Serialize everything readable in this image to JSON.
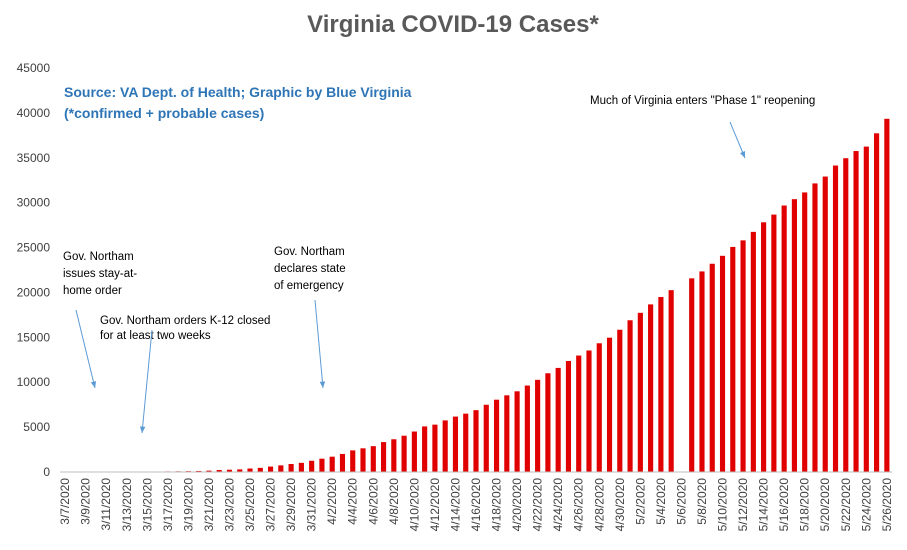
{
  "chart_data": {
    "type": "bar",
    "title": "Virginia COVID-19 Cases*",
    "source_note": "Source: VA Dept. of Health; Graphic by Blue Virginia",
    "source_note2": "(*confirmed + probable cases)",
    "xlabel": "",
    "ylabel": "",
    "ylim": [
      0,
      45000
    ],
    "yticks": [
      0,
      5000,
      10000,
      15000,
      20000,
      25000,
      30000,
      35000,
      40000,
      45000
    ],
    "xtick_labels": [
      "3/7/2020",
      "3/9/2020",
      "3/11/2020",
      "3/13/2020",
      "3/15/2020",
      "3/17/2020",
      "3/19/2020",
      "3/21/2020",
      "3/23/2020",
      "3/25/2020",
      "3/27/2020",
      "3/29/2020",
      "3/31/2020",
      "4/2/2020",
      "4/4/2020",
      "4/6/2020",
      "4/8/2020",
      "4/10/2020",
      "4/12/2020",
      "4/14/2020",
      "4/16/2020",
      "4/18/2020",
      "4/20/2020",
      "4/22/2020",
      "4/24/2020",
      "4/26/2020",
      "4/28/2020",
      "4/30/2020",
      "5/2/2020",
      "5/4/2020",
      "5/6/2020",
      "5/8/2020",
      "5/10/2020",
      "5/12/2020",
      "5/14/2020",
      "5/16/2020",
      "5/18/2020",
      "5/20/2020",
      "5/22/2020",
      "5/24/2020",
      "5/26/2020"
    ],
    "bar_color": "#e00000",
    "grid": false,
    "legend": "none",
    "categories": [
      "3/7/2020",
      "3/8/2020",
      "3/9/2020",
      "3/10/2020",
      "3/11/2020",
      "3/12/2020",
      "3/13/2020",
      "3/14/2020",
      "3/15/2020",
      "3/16/2020",
      "3/17/2020",
      "3/18/2020",
      "3/19/2020",
      "3/20/2020",
      "3/21/2020",
      "3/22/2020",
      "3/23/2020",
      "3/24/2020",
      "3/25/2020",
      "3/26/2020",
      "3/27/2020",
      "3/28/2020",
      "3/29/2020",
      "3/30/2020",
      "3/31/2020",
      "4/1/2020",
      "4/2/2020",
      "4/3/2020",
      "4/4/2020",
      "4/5/2020",
      "4/6/2020",
      "4/7/2020",
      "4/8/2020",
      "4/9/2020",
      "4/10/2020",
      "4/11/2020",
      "4/12/2020",
      "4/13/2020",
      "4/14/2020",
      "4/15/2020",
      "4/16/2020",
      "4/17/2020",
      "4/18/2020",
      "4/19/2020",
      "4/20/2020",
      "4/21/2020",
      "4/22/2020",
      "4/23/2020",
      "4/24/2020",
      "4/25/2020",
      "4/26/2020",
      "4/27/2020",
      "4/28/2020",
      "4/29/2020",
      "4/30/2020",
      "5/1/2020",
      "5/2/2020",
      "5/3/2020",
      "5/4/2020",
      "5/5/2020",
      "5/6/2020",
      "5/7/2020",
      "5/8/2020",
      "5/9/2020",
      "5/10/2020",
      "5/11/2020",
      "5/12/2020",
      "5/13/2020",
      "5/14/2020",
      "5/15/2020",
      "5/16/2020",
      "5/17/2020",
      "5/18/2020",
      "5/19/2020",
      "5/20/2020",
      "5/21/2020",
      "5/22/2020",
      "5/23/2020",
      "5/24/2020",
      "5/25/2020",
      "5/26/2020"
    ],
    "values": [
      1,
      2,
      2,
      3,
      17,
      30,
      41,
      45,
      45,
      51,
      67,
      77,
      94,
      114,
      152,
      219,
      254,
      290,
      391,
      460,
      604,
      739,
      890,
      1020,
      1250,
      1484,
      1706,
      2012,
      2407,
      2637,
      2878,
      3333,
      3645,
      4042,
      4509,
      5077,
      5274,
      5747,
      6171,
      6500,
      6889,
      7491,
      8053,
      8542,
      8990,
      9630,
      10266,
      10998,
      11594,
      12366,
      12970,
      13535,
      14339,
      14961,
      15846,
      16901,
      17731,
      18671,
      19492,
      20256,
      null,
      21570,
      22342,
      23196,
      24081,
      25070,
      25800,
      26746,
      27813,
      28672,
      29683,
      30388,
      31140,
      32145,
      32908,
      34137,
      34950,
      35749,
      36244,
      37727,
      39342
    ],
    "annotations": [
      {
        "id": "stay-at-home",
        "lines": [
          "Gov. Northam",
          "issues stay-at-",
          "home order"
        ]
      },
      {
        "id": "k12-closed",
        "lines": [
          "Gov. Northam orders K-12 closed",
          "for at least two weeks"
        ]
      },
      {
        "id": "state-of-emergency",
        "lines": [
          "Gov. Northam",
          "declares state",
          "of emergency"
        ]
      },
      {
        "id": "phase-1",
        "lines": [
          "Much of Virginia enters \"Phase 1\" reopening"
        ]
      }
    ]
  }
}
